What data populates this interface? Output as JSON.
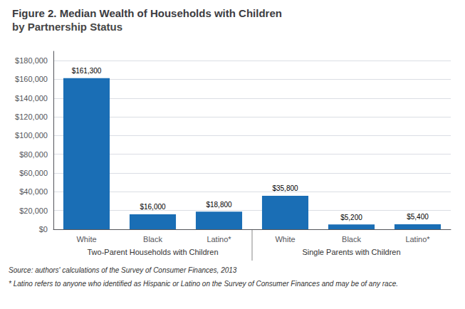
{
  "chart_data": {
    "type": "bar",
    "title": "Figure 2. Median Wealth of Households with Children",
    "subtitle": "by Partnership Status",
    "categories": [
      "White",
      "Black",
      "Latino*",
      "White",
      "Black",
      "Latino*"
    ],
    "values": [
      161300,
      16000,
      18800,
      35800,
      5200,
      5400
    ],
    "value_labels": [
      "$161,300",
      "$16,000",
      "$18,800",
      "$35,800",
      "$5,200",
      "$5,400"
    ],
    "data_labels": true,
    "color": "#1a6eb5",
    "annotations": [
      "Two-Parent Households with Children",
      "Single Parents with Children"
    ],
    "source": "Source: authors' calculations of the Survey of Consumer Finances, 2013",
    "footnote": "* Latino refers to anyone who identified as Hispanic or Latino on the Survey of Consumer Finances and may be of any race.",
    "ylim": [
      0,
      190000
    ],
    "yticks": [
      {
        "value": 0,
        "label": "$0"
      },
      {
        "value": 20000,
        "label": "$20,000"
      },
      {
        "value": 40000,
        "label": "$40,000"
      },
      {
        "value": 60000,
        "label": "$60,000"
      },
      {
        "value": 80000,
        "label": "$80,000"
      },
      {
        "value": 100000,
        "label": "$100,000"
      },
      {
        "value": 120000,
        "label": "$120,000"
      },
      {
        "value": 140000,
        "label": "$140,000"
      },
      {
        "value": 160000,
        "label": "$160,000"
      },
      {
        "value": 180000,
        "label": "$180,000"
      }
    ],
    "grid": true
  }
}
